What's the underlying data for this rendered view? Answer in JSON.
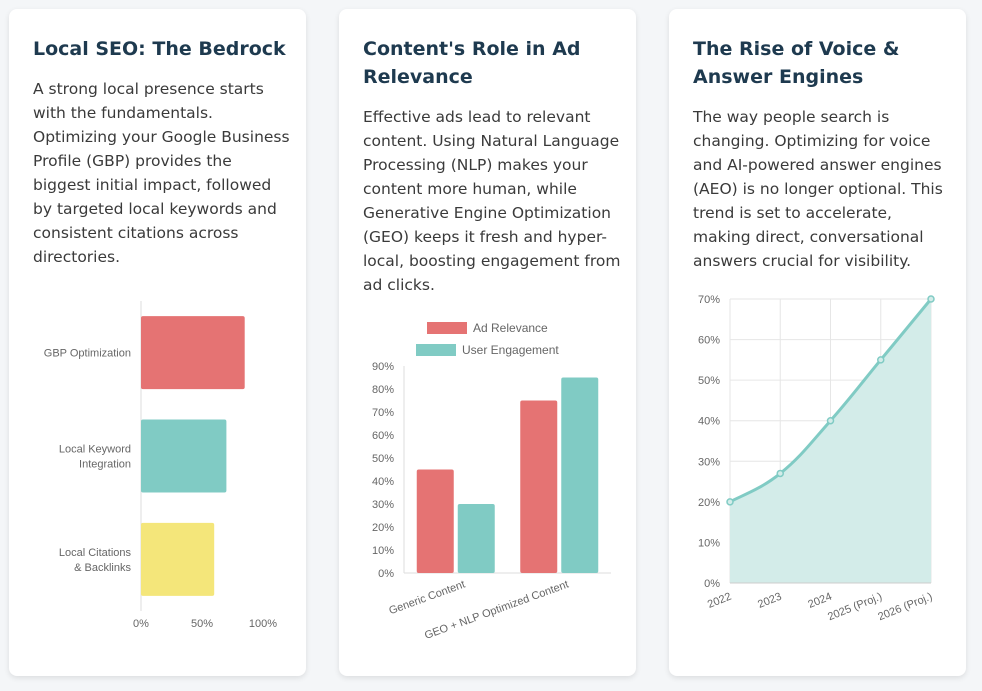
{
  "colors": {
    "red": "#e57373",
    "teal": "#80cbc4",
    "yellow": "#f4e67a",
    "teal_fill": "#d3ece9",
    "teal_line": "#80cbc4"
  },
  "cards": [
    {
      "title": "Local SEO: The Bedrock",
      "body": "A strong local presence starts with the fundamentals. Optimizing your Google Business Profile (GBP) provides the biggest initial impact, followed by targeted local keywords and consistent citations across directories."
    },
    {
      "title": "Content's Role in Ad Relevance",
      "body": "Effective ads lead to relevant content. Using Natural Language Processing (NLP) makes your content more human, while Generative Engine Optimization (GEO) keeps it fresh and hyper-local, boosting engagement from ad clicks."
    },
    {
      "title": "The Rise of Voice & Answer Engines",
      "body": "The way people search is changing. Optimizing for voice and AI-powered answer engines (AEO) is no longer optional. This trend is set to accelerate, making direct, conversational answers crucial for visibility."
    }
  ],
  "chart_data": [
    {
      "type": "bar",
      "orientation": "horizontal",
      "categories": [
        [
          "GBP Optimization"
        ],
        [
          "Local Keyword",
          "Integration"
        ],
        [
          "Local Citations",
          "& Backlinks"
        ]
      ],
      "values": [
        85,
        70,
        60
      ],
      "bar_colors": [
        "#e57373",
        "#80cbc4",
        "#f4e67a"
      ],
      "xlim": [
        0,
        100
      ],
      "xticks": [
        "0%",
        "50%",
        "100%"
      ],
      "legend": "none"
    },
    {
      "type": "bar",
      "orientation": "vertical",
      "categories": [
        "Generic Content",
        "GEO + NLP Optimized Content"
      ],
      "series": [
        {
          "name": "Ad Relevance",
          "values": [
            45,
            75
          ],
          "color": "#e57373"
        },
        {
          "name": "User Engagement",
          "values": [
            30,
            85
          ],
          "color": "#80cbc4"
        }
      ],
      "ylim": [
        0,
        90
      ],
      "yticks": [
        "0%",
        "10%",
        "20%",
        "30%",
        "40%",
        "50%",
        "60%",
        "70%",
        "80%",
        "90%"
      ],
      "legend": "top"
    },
    {
      "type": "area",
      "x": [
        "2022",
        "2023",
        "2024",
        "2025 (Proj.)",
        "2026 (Proj.)"
      ],
      "values": [
        20,
        27,
        40,
        55,
        70
      ],
      "ylim": [
        0,
        70
      ],
      "yticks": [
        "0%",
        "10%",
        "20%",
        "30%",
        "40%",
        "50%",
        "60%",
        "70%"
      ],
      "grid": true,
      "legend": "none"
    }
  ]
}
